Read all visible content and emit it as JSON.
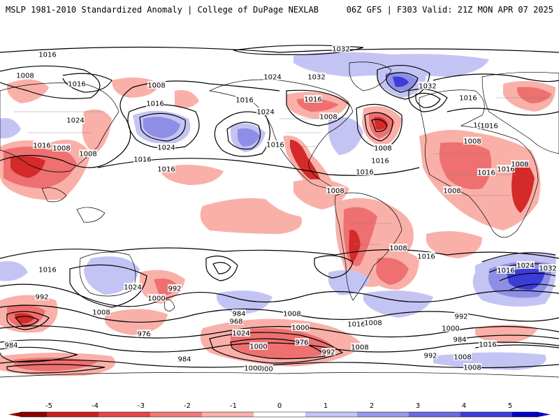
{
  "header": {
    "left_title": "MSLP 1981-2010 Standardized Anomaly | College of DuPage NEXLAB",
    "right_title": "06Z GFS | F303 Valid: 21Z MON APR 07 2025"
  },
  "colorbar": {
    "ticks": [
      "-5",
      "-4",
      "-3",
      "-2",
      "-1",
      "0",
      "1",
      "2",
      "3",
      "4",
      "5"
    ],
    "colors": [
      "#8b0000",
      "#c81e1e",
      "#e34848",
      "#f27878",
      "#f9b0a8",
      "#ffffff",
      "#c4c4f4",
      "#9898ea",
      "#6a6ae0",
      "#3c3cd8",
      "#0000c8"
    ]
  },
  "isobar_labels": [
    "1016",
    "1008",
    "1016",
    "1008",
    "1024",
    "1016",
    "1008",
    "1008",
    "1016",
    "1016",
    "1024",
    "1016",
    "1016",
    "1024",
    "1032",
    "1032",
    "1016",
    "1008",
    "1024",
    "1032",
    "1008",
    "1016",
    "1016",
    "1016",
    "1008",
    "1016",
    "1008",
    "1008",
    "1016",
    "1016",
    "1008",
    "1008",
    "1008",
    "1016",
    "1016",
    "1032",
    "1024",
    "1016",
    "1016",
    "1024",
    "992",
    "1000",
    "992",
    "976",
    "1008",
    "984",
    "1000",
    "1016",
    "1008",
    "984",
    "968",
    "976",
    "1024",
    "1000",
    "992",
    "1008",
    "1000",
    "992",
    "1008",
    "984",
    "1016",
    "984",
    "1008",
    "1008",
    "992",
    "1000",
    "1000"
  ],
  "colors": {
    "contour": "#000000",
    "coast": "#000000",
    "border": "#808080",
    "neg_light": "#f9b0a8",
    "neg_mid": "#ee7070",
    "neg_dark": "#d42a2a",
    "neg_deep": "#8b0000",
    "pos_light": "#c4c4f4",
    "pos_mid": "#8e8ee6",
    "pos_dark": "#3c3cd8"
  }
}
